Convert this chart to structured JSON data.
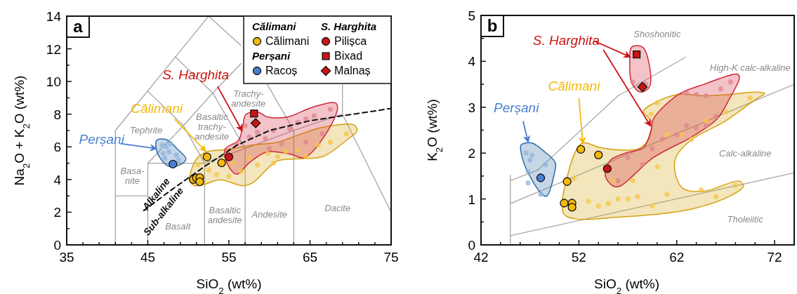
{
  "chart_data": [
    {
      "type": "scatter",
      "title": "a",
      "xlabel": "SiO$_{2}$ (wt%)",
      "ylabel": "Na$_{2}$O + K$_{2}$O (wt%)",
      "xlim": [
        35,
        75
      ],
      "ylim": [
        0,
        14
      ],
      "xticks": [
        35,
        {
          "value": 37,
          "label": null
        },
        {
          "value": 39,
          "label": null
        },
        {
          "value": 41,
          "label": null
        },
        {
          "value": 43,
          "label": null
        },
        45,
        {
          "value": 47,
          "label": null
        },
        {
          "value": 49,
          "label": null
        },
        {
          "value": 51,
          "label": null
        },
        {
          "value": 53,
          "label": null
        },
        55,
        {
          "value": 57,
          "label": null
        },
        {
          "value": 59,
          "label": null
        },
        {
          "value": 61,
          "label": null
        },
        {
          "value": 63,
          "label": null
        },
        65,
        {
          "value": 67,
          "label": null
        },
        {
          "value": 69,
          "label": null
        },
        {
          "value": 71,
          "label": null
        },
        {
          "value": 73,
          "label": null
        },
        75
      ],
      "yticks": [
        0,
        {
          "value": 1,
          "label": null
        },
        2,
        {
          "value": 3,
          "label": null
        },
        4,
        {
          "value": 5,
          "label": null
        },
        6,
        {
          "value": 7,
          "label": null
        },
        8,
        {
          "value": 9,
          "label": null
        },
        10,
        {
          "value": 11,
          "label": null
        },
        12,
        {
          "value": 13,
          "label": null
        },
        14
      ],
      "legend": "top right",
      "series": [
        {
          "type": "line",
          "color": "#a6a6a6",
          "x": [
            41,
            41,
            52.5
          ],
          "values": [
            0,
            7,
            14
          ]
        },
        {
          "type": "line",
          "color": "#a6a6a6",
          "x": [
            45,
            45,
            52,
            52
          ],
          "values": [
            0,
            5,
            5,
            0
          ]
        },
        {
          "type": "line",
          "color": "#a6a6a6",
          "x": [
            41,
            45
          ],
          "values": [
            3,
            3
          ]
        },
        {
          "type": "line",
          "color": "#a6a6a6",
          "x": [
            45,
            49.4,
            53,
            56.5
          ],
          "values": [
            5,
            7.3,
            9.3,
            11.1
          ]
        },
        {
          "type": "line",
          "color": "#a6a6a6",
          "x": [
            45,
            49.4,
            52
          ],
          "values": [
            9.4,
            7.3,
            5
          ]
        },
        {
          "type": "line",
          "color": "#a6a6a6",
          "x": [
            48.4,
            53,
            57
          ],
          "values": [
            11.5,
            9.3,
            5.9
          ]
        },
        {
          "type": "line",
          "color": "#a6a6a6",
          "x": [
            52.5,
            56.5
          ],
          "values": [
            14,
            12.2
          ]
        },
        {
          "type": "line",
          "color": "#a6a6a6",
          "x": [
            59.7,
            63
          ],
          "values": [
            9.85,
            7
          ]
        },
        {
          "type": "line",
          "color": "#a6a6a6",
          "x": [
            52,
            57,
            63,
            69
          ],
          "values": [
            5,
            5.9,
            7,
            8
          ]
        },
        {
          "type": "line",
          "color": "#a6a6a6",
          "x": [
            57,
            57
          ],
          "values": [
            0,
            5.9
          ]
        },
        {
          "type": "line",
          "color": "#a6a6a6",
          "x": [
            63,
            63
          ],
          "values": [
            0,
            7
          ]
        },
        {
          "type": "line",
          "color": "#a6a6a6",
          "x": [
            69,
            69,
            75
          ],
          "values": [
            9.8,
            8,
            2
          ]
        },
        {
          "type": "area",
          "color": "#2d6aa8",
          "x": [
            46.1,
            47.3,
            48.7,
            49.7,
            49.0,
            47.6,
            46.4,
            46.0
          ],
          "values": [
            6.41,
            6.44,
            5.84,
            5.26,
            4.91,
            4.81,
            5.41,
            5.98
          ]
        },
        {
          "type": "area",
          "color": "#d4a20f",
          "x": [
            50.2,
            51.0,
            52.2,
            54.8,
            58.0,
            60.9,
            63.8,
            66.6,
            70.4,
            70.8,
            69.5,
            66.6,
            63.2,
            60.9,
            58.0,
            56.8,
            53.9,
            51.9,
            50.8,
            50.2
          ],
          "values": [
            4.26,
            5.26,
            5.69,
            5.84,
            6.12,
            6.27,
            6.77,
            7.2,
            7.34,
            6.98,
            6.41,
            5.41,
            5.26,
            5.12,
            3.83,
            3.62,
            3.98,
            3.69,
            3.62,
            3.9
          ]
        },
        {
          "type": "area",
          "color": "#d0283a",
          "x": [
            54.5,
            56.2,
            56.7,
            57.1,
            58.6,
            59.7,
            62.3,
            65.2,
            68.1,
            68.4,
            67.2,
            64.3,
            62.6,
            59.7,
            57.4,
            56.0,
            55.1
          ],
          "values": [
            5.84,
            6.41,
            7.27,
            7.98,
            8.13,
            7.84,
            7.84,
            8.41,
            8.7,
            8.41,
            6.98,
            5.34,
            5.55,
            5.69,
            4.98,
            4.33,
            4.69
          ]
        },
        {
          "type": "scatter",
          "marker": "circle",
          "color": "#8fb3df",
          "x": [
            46.8,
            47.3,
            46.9,
            47.6,
            48.5,
            48.8,
            47.1,
            47.8
          ],
          "values": [
            6.1,
            6.0,
            5.6,
            5.7,
            5.5,
            5.2,
            5.3,
            6.2
          ]
        },
        {
          "type": "scatter",
          "marker": "circle",
          "color": "#f7c64a",
          "x": [
            51.2,
            52.5,
            53.5,
            55,
            56.5,
            57.5,
            58.5,
            59.8,
            60.5,
            62,
            63.5,
            64.5,
            66,
            67.5,
            69.5,
            55.5,
            61
          ],
          "values": [
            4.9,
            4.6,
            4.3,
            4.2,
            4.5,
            5.3,
            4.9,
            5.6,
            5.0,
            5.7,
            5.8,
            5.4,
            6.1,
            6.3,
            6.8,
            5.0,
            5.4
          ]
        },
        {
          "type": "scatter",
          "marker": "circle",
          "color": "#e0848e",
          "x": [
            56,
            57,
            57.5,
            58.5,
            59.5,
            60.5,
            61.5,
            62.5,
            63.5,
            64.5,
            65.5,
            66.5,
            67.5,
            64.5,
            60
          ],
          "values": [
            6.2,
            7.3,
            6.6,
            6.9,
            6.5,
            7.0,
            6.2,
            7.1,
            7.5,
            7.7,
            7.9,
            6.8,
            8.3,
            6.3,
            5.9
          ]
        },
        {
          "type": "line",
          "color": "#111111",
          "line_style": "dashed",
          "x": [
            44.5,
            48,
            52,
            56,
            60,
            65,
            75
          ],
          "values": [
            2.1,
            3.4,
            4.8,
            6.1,
            7,
            7.6,
            8.35
          ]
        },
        {
          "name": "Călimani",
          "type": "scatter",
          "marker": "circle",
          "color": "#f5b80c",
          "x": [
            52.3,
            54.1,
            50.6,
            51.0,
            51.4,
            51.4
          ],
          "values": [
            5.38,
            5.02,
            4.0,
            4.1,
            4.12,
            3.86
          ]
        },
        {
          "name": "Racoș",
          "type": "scatter",
          "marker": "circle",
          "color": "#4a7fd0",
          "x": [
            48.1
          ],
          "values": [
            4.94
          ]
        },
        {
          "name": "Pilișca",
          "type": "scatter",
          "marker": "circle",
          "color": "#cc1414",
          "x": [
            55.0
          ],
          "values": [
            5.38
          ]
        },
        {
          "name": "Bixad",
          "type": "scatter",
          "marker": "square",
          "color": "#cc1414",
          "x": [
            58.1
          ],
          "values": [
            8.04
          ]
        },
        {
          "name": "Malnaș",
          "type": "scatter",
          "marker": "diamond",
          "color": "#cc1414",
          "x": [
            58.3
          ],
          "values": [
            7.45
          ]
        }
      ],
      "annotations": [
        "Călimani",
        "Perșani",
        "S. Harghita",
        {
          "text": "Perșani",
          "x": 46.0,
          "y": 5.9
        },
        {
          "text": "Călimani",
          "x": 52.1,
          "y": 5.75
        },
        {
          "text": "S. Harghita",
          "x": 56.6,
          "y": 7.0
        },
        "Tephrite",
        "Basa-\nnite",
        "Basaltic\ntrachy-\nandesite",
        "Trachy-\nandesite",
        "Basalt",
        "Basaltic\nandesite",
        "Andesite",
        "Dacite",
        "Alkaline",
        "Sub-alkaline"
      ]
    },
    {
      "type": "scatter",
      "title": "b",
      "xlabel": "SiO$_{2}$ (wt%)",
      "ylabel": "K$_{2}$O (wt%)",
      "xlim": [
        42,
        74
      ],
      "ylim": [
        0,
        5
      ],
      "xticks": [
        42,
        {
          "value": 44,
          "label": null
        },
        {
          "value": 46,
          "label": null
        },
        {
          "value": 48,
          "label": null
        },
        {
          "value": 50,
          "label": null
        },
        52,
        {
          "value": 54,
          "label": null
        },
        {
          "value": 56,
          "label": null
        },
        {
          "value": 58,
          "label": null
        },
        {
          "value": 60,
          "label": null
        },
        62,
        {
          "value": 64,
          "label": null
        },
        {
          "value": 66,
          "label": null
        },
        {
          "value": 68,
          "label": null
        },
        {
          "value": 70,
          "label": null
        },
        72
      ],
      "yticks": [
        0,
        {
          "value": 0.5,
          "label": null
        },
        1,
        {
          "value": 1.5,
          "label": null
        },
        2,
        {
          "value": 2.5,
          "label": null
        },
        3,
        {
          "value": 3.5,
          "label": null
        },
        4,
        {
          "value": 4.5,
          "label": null
        },
        5
      ],
      "series": [
        {
          "type": "line",
          "color": "#a6a6a6",
          "x": [
            45,
            45
          ],
          "values": [
            0,
            1.52
          ]
        },
        {
          "type": "line",
          "color": "#a6a6a6",
          "x": [
            45,
            74
          ],
          "values": [
            0.2,
            1.57
          ]
        },
        {
          "type": "line",
          "color": "#a6a6a6",
          "x": [
            45,
            74
          ],
          "values": [
            0.9,
            3.5
          ]
        },
        {
          "type": "line",
          "color": "#a6a6a6",
          "x": [
            45,
            47.8,
            56,
            62.9
          ],
          "values": [
            1.4,
            1.63,
            3.25,
            4.09
          ]
        },
        {
          "type": "area",
          "color": "#2d6aa8",
          "x": [
            46.1,
            47.2,
            48.6,
            49.6,
            49.5,
            48.7,
            48.2,
            46.7,
            46.1
          ],
          "values": [
            2.18,
            2.22,
            2.01,
            1.79,
            1.56,
            1.06,
            1.11,
            1.62,
            2.01
          ]
        },
        {
          "type": "area",
          "color": "#d4a20f",
          "x": [
            50.3,
            50.7,
            51.6,
            52.4,
            54.2,
            56.0,
            58.1,
            59.1,
            59.4,
            58.6,
            59.6,
            62.2,
            64.8,
            67.4,
            70.0,
            71.0,
            70.2,
            66.9,
            63.5,
            61.9,
            61.9,
            62.7,
            64.8,
            68.4,
            68.8,
            67.4,
            63.5,
            59.6,
            55.7,
            51.8,
            50.5
          ],
          "values": [
            0.94,
            1.39,
            2.01,
            2.22,
            2.12,
            2.07,
            2.1,
            2.29,
            2.69,
            2.91,
            3.08,
            3.28,
            3.25,
            3.28,
            3.33,
            3.3,
            3.19,
            2.69,
            2.29,
            1.9,
            1.51,
            1.22,
            1.17,
            1.39,
            1.28,
            1.06,
            0.78,
            0.66,
            0.6,
            0.56,
            0.66
          ]
        },
        {
          "type": "area",
          "color": "#d0283a",
          "x": [
            54.7,
            55.2,
            56.9,
            58.6,
            59.4,
            59.6,
            62.2,
            64.8,
            68.2,
            68.4,
            67.4,
            66.1,
            63.5,
            59.6,
            56.2,
            55.5
          ],
          "values": [
            1.51,
            1.84,
            2.01,
            2.12,
            2.52,
            2.74,
            3.28,
            3.5,
            3.72,
            3.64,
            3.19,
            2.74,
            2.35,
            1.9,
            1.28,
            1.28
          ]
        },
        {
          "type": "area",
          "color": "#d0283a",
          "x": [
            57.4,
            58.5,
            59.2,
            59.2,
            58.3,
            57.4,
            57.2
          ],
          "values": [
            4.31,
            4.31,
            3.92,
            3.44,
            3.33,
            3.53,
            3.98
          ]
        },
        {
          "type": "scatter",
          "marker": "circle",
          "color": "#8fb3df",
          "x": [
            46.6,
            47.2,
            47.0,
            46.8,
            48.6,
            48.1,
            46.8
          ],
          "values": [
            2.0,
            1.95,
            1.85,
            1.6,
            1.75,
            1.1,
            1.35
          ]
        },
        {
          "type": "scatter",
          "marker": "circle",
          "color": "#f7c64a",
          "x": [
            51.5,
            53,
            54,
            55,
            56,
            57,
            58,
            59.5,
            61,
            64.5,
            66,
            68,
            55.5,
            57.5,
            60,
            61,
            62.5,
            63.5,
            65,
            67,
            69.5,
            60,
            59.4
          ],
          "values": [
            1.45,
            0.95,
            0.85,
            0.9,
            1.0,
            1.0,
            1.05,
            0.85,
            1.1,
            1.2,
            1.05,
            1.3,
            1.4,
            1.4,
            1.7,
            2.4,
            2.4,
            2.3,
            2.7,
            2.9,
            3.2,
            3.1,
            2.85
          ]
        },
        {
          "type": "scatter",
          "marker": "circle",
          "color": "#e0848e",
          "x": [
            56,
            57,
            58.5,
            59.5,
            60.5,
            62,
            63,
            64,
            65,
            66,
            63,
            64,
            65,
            66.5,
            67.5,
            57.5,
            58.8
          ],
          "values": [
            1.4,
            1.9,
            1.75,
            2.1,
            2.3,
            2.4,
            2.6,
            2.55,
            2.6,
            2.8,
            3.3,
            3.28,
            3.25,
            3.4,
            3.55,
            3.55,
            3.5
          ]
        },
        {
          "type": "scatter",
          "marker": "circle",
          "color": "#f5b80c",
          "x": [
            52.2,
            54.0,
            50.8,
            50.5,
            51.3,
            51.3
          ],
          "values": [
            2.08,
            1.96,
            1.38,
            0.91,
            0.91,
            0.82
          ]
        },
        {
          "type": "scatter",
          "marker": "circle",
          "color": "#4a7fd0",
          "x": [
            48.1
          ],
          "values": [
            1.46
          ]
        },
        {
          "type": "scatter",
          "marker": "circle",
          "color": "#cc1414",
          "x": [
            54.9
          ],
          "values": [
            1.66
          ]
        },
        {
          "type": "scatter",
          "marker": "square",
          "color": "#cc1414",
          "x": [
            57.9
          ],
          "values": [
            4.15
          ]
        },
        {
          "type": "scatter",
          "marker": "diamond",
          "color": "#cc1414",
          "x": [
            58.5
          ],
          "values": [
            3.44
          ]
        }
      ],
      "annotations": [
        {
          "text": "Perșani",
          "x": 46.8,
          "y": 2.25
        },
        {
          "text": "Călimani",
          "x": 52.4,
          "y": 2.22
        },
        {
          "text": "S. Harghita",
          "x": 57.2,
          "y": 4.1
        },
        "Shoshonitic",
        "High-K calc-alkaline",
        "Calc-alkaline",
        "Tholeiitic"
      ]
    }
  ]
}
